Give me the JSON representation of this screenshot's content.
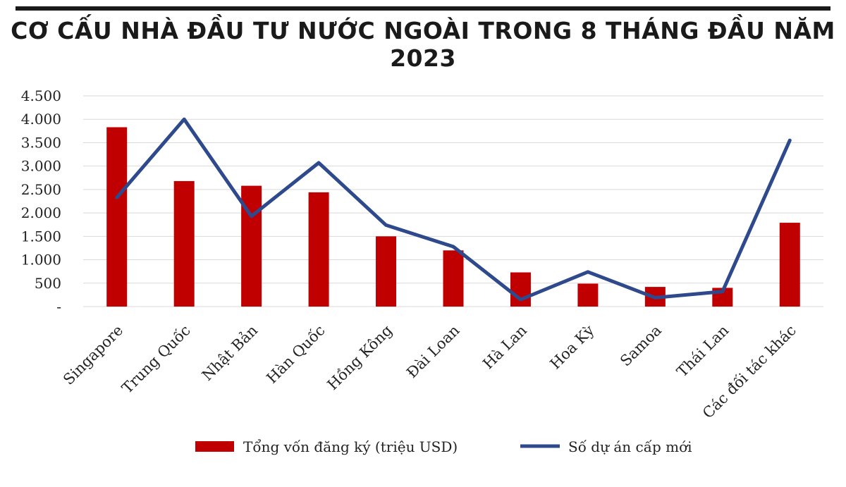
{
  "title": "CƠ CẤU NHÀ ĐẦU TƯ NƯỚC NGOÀI TRONG 8 THÁNG ĐẦU NĂM 2023",
  "colors": {
    "bar": "#c00000",
    "line": "#2e4a8c",
    "grid": "#d9d9d9",
    "rule": "#1a1a1a"
  },
  "chart_data": {
    "type": "bar",
    "title": "CƠ CẤU NHÀ ĐẦU TƯ NƯỚC NGOÀI TRONG 8 THÁNG ĐẦU NĂM 2023",
    "categories": [
      "Singapore",
      "Trung Quốc",
      "Nhật Bản",
      "Hàn Quốc",
      "Hồng Kông",
      "Đài Loan",
      "Hà Lan",
      "Hoa Kỳ",
      "Samoa",
      "Thái Lan",
      "Các đối tác khác"
    ],
    "y_ticks": [
      "-",
      "500",
      "1.000",
      "1.500",
      "2.000",
      "2.500",
      "3.000",
      "3.500",
      "4.000",
      "4.500"
    ],
    "ylim": [
      0,
      4500
    ],
    "grid": true,
    "legend_position": "bottom",
    "series": [
      {
        "name": "Tổng vốn đăng ký (triệu USD)",
        "type": "bar",
        "values": [
          3830,
          2680,
          2580,
          2440,
          1500,
          1200,
          730,
          490,
          420,
          400,
          1790
        ]
      },
      {
        "name": "Số dự án cấp mới",
        "type": "line",
        "values": [
          2330,
          4000,
          1930,
          3070,
          1740,
          1280,
          150,
          740,
          190,
          320,
          3550
        ]
      }
    ]
  }
}
